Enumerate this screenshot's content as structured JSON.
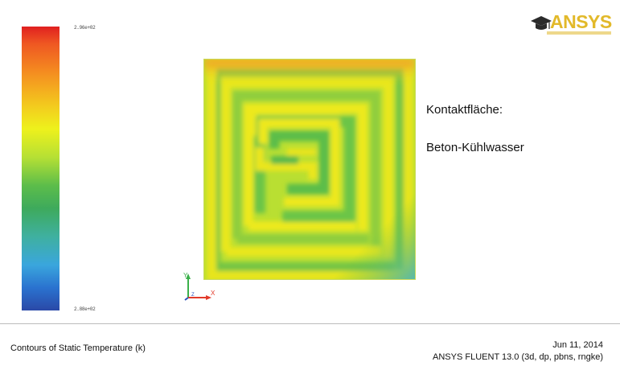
{
  "viewport": {
    "caption": "Contours of Static Temperature (k)",
    "date": "Jun 11, 2014",
    "version": "ANSYS FLUENT 13.0 (3d, dp, pbns, rngke)"
  },
  "logo": {
    "text": "ANSYS"
  },
  "annotations": {
    "line1": "Kontaktfläche:",
    "line2": "Beton-Kühlwasser"
  },
  "colorbar": {
    "top_label": "2.96e+02",
    "bottom_label": "2.88e+02",
    "min": 288,
    "max": 296
  },
  "triad": {
    "x": "X",
    "y": "Y",
    "z": "Z"
  },
  "colors": {
    "hot": "#e02020",
    "warm": "#eef11c",
    "mid": "#5cbd4a",
    "cool": "#2a49a7"
  }
}
